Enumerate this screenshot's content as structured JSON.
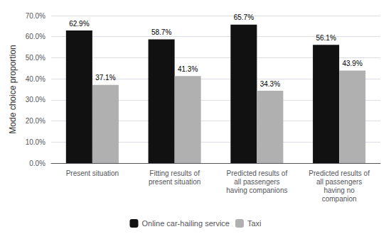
{
  "chart_data": {
    "type": "bar",
    "ylabel": "Mode choice proportion",
    "categories": [
      "Present situation",
      "Fitting results of\npresent situation",
      "Predicted results of\nall passengers\nhaving companions",
      "Predicted results of\nall passengers\nhaving no\ncompanion"
    ],
    "series": [
      {
        "name": "Online car-hailing service",
        "color": "#111111",
        "values": [
          62.9,
          58.7,
          65.7,
          56.1
        ],
        "value_labels": [
          "62.9%",
          "58.7%",
          "65.7%",
          "56.1%"
        ]
      },
      {
        "name": "Taxi",
        "color": "#b0b0b0",
        "values": [
          37.1,
          41.3,
          34.3,
          43.9
        ],
        "value_labels": [
          "37.1%",
          "41.3%",
          "34.3%",
          "43.9%"
        ]
      }
    ],
    "ylim": [
      0,
      70
    ],
    "yticks": [
      {
        "value": 0,
        "label": "0.0%"
      },
      {
        "value": 10,
        "label": "10.0%"
      },
      {
        "value": 20,
        "label": "20.0%"
      },
      {
        "value": 30,
        "label": "30.0%"
      },
      {
        "value": 40,
        "label": "40.0%"
      },
      {
        "value": 50,
        "label": "50.0%"
      },
      {
        "value": 60,
        "label": "60.0%"
      },
      {
        "value": 70,
        "label": "70.0%"
      }
    ],
    "grid": true,
    "legend": "bottom",
    "data_labels": true
  }
}
